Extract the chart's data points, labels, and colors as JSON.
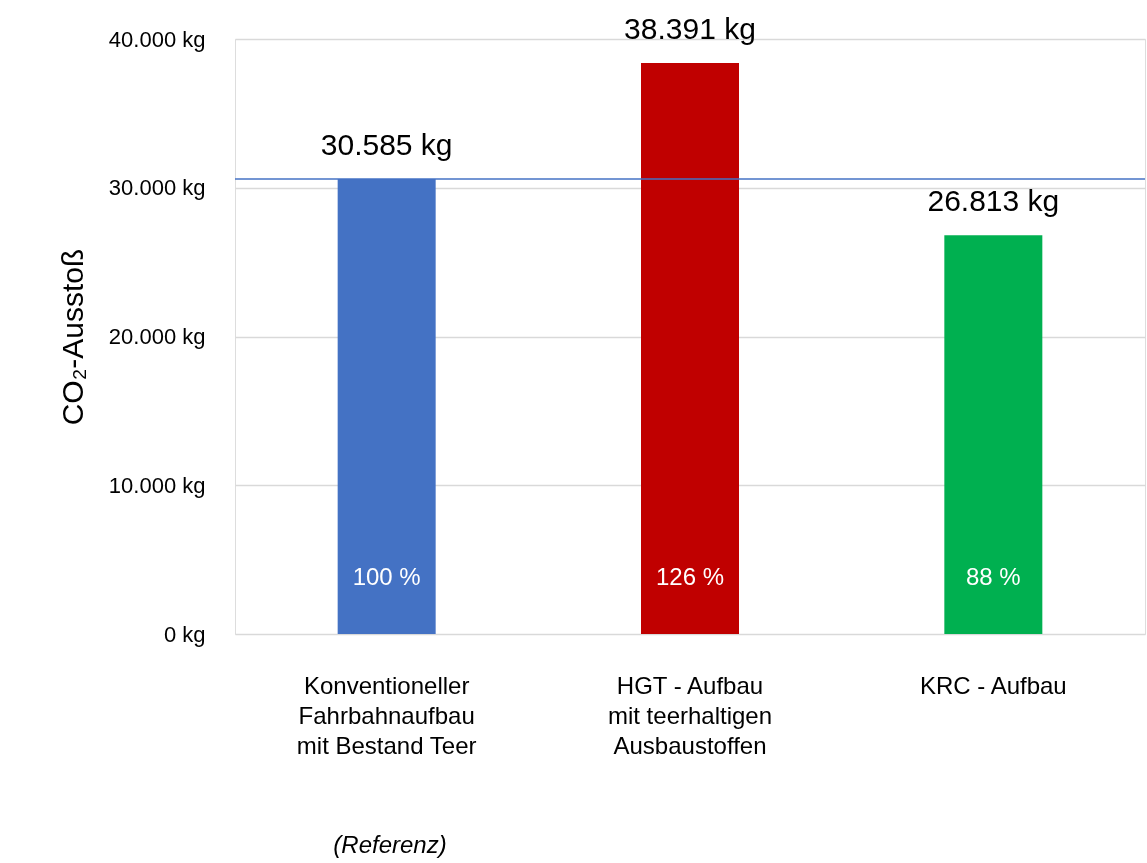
{
  "chart_data": {
    "type": "bar",
    "ylabel": "CO₂-Ausstoß",
    "categories": [
      "Konventioneller\nFahrbahnaufbau\nmit Bestand Teer",
      "HGT - Aufbau\nmit teerhaltigen\nAusbaustoffen",
      "KRC - Aufbau"
    ],
    "values": [
      30585,
      38391,
      26813
    ],
    "colors": [
      "#4472c4",
      "#c00000",
      "#00b050"
    ],
    "value_labels": [
      "30.585 kg",
      "38.391 kg",
      "26.813 kg"
    ],
    "ylim": [
      0,
      40000
    ],
    "yticks": [
      {
        "value": 0,
        "label": "0 kg"
      },
      {
        "value": 10000,
        "label": "10.000 kg"
      },
      {
        "value": 20000,
        "label": "20.000 kg"
      },
      {
        "value": 30000,
        "label": "30.000 kg"
      },
      {
        "value": 40000,
        "label": "40.000 kg"
      }
    ],
    "grid": "y",
    "ref_lines": [
      {
        "axis": "y",
        "value": 30585,
        "color": "#4472c4"
      }
    ],
    "annotations": [
      "100 %",
      "126 %",
      "88 %",
      "(Referenz)"
    ]
  }
}
